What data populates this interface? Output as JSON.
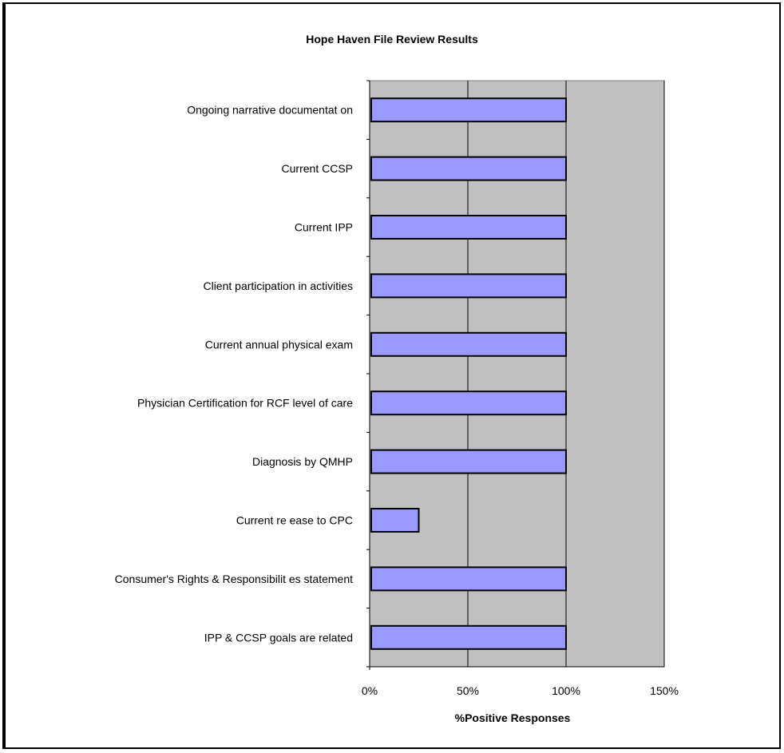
{
  "chart_data": {
    "type": "bar",
    "orientation": "horizontal",
    "title": "Hope Haven File Review Results",
    "xlabel": "%Positive Responses",
    "ylabel": "",
    "categories": [
      "Ongoing narrative documentat on",
      "Current CCSP",
      "Current IPP",
      "Client participation in activities",
      "Current annual physical exam",
      "Physician Certification for RCF level of care",
      "Diagnosis by QMHP",
      "Current re ease to CPC",
      "Consumer's Rights & Responsibilit es statement",
      "IPP & CCSP goals are related"
    ],
    "values": [
      1.0,
      1.0,
      1.0,
      1.0,
      1.0,
      1.0,
      1.0,
      0.25,
      1.0,
      1.0
    ],
    "xlim": [
      0,
      1.5
    ],
    "x_ticks": [
      0,
      0.5,
      1.0,
      1.5
    ],
    "x_tick_labels": [
      "0%",
      "50%",
      "100%",
      "150%"
    ],
    "grid": "vertical major gridlines",
    "legend": "none",
    "colors": {
      "bar_fill": "#9999FF",
      "bar_stroke": "#000000",
      "plot_background": "#C0C0C0",
      "gridline": "#000000"
    }
  }
}
